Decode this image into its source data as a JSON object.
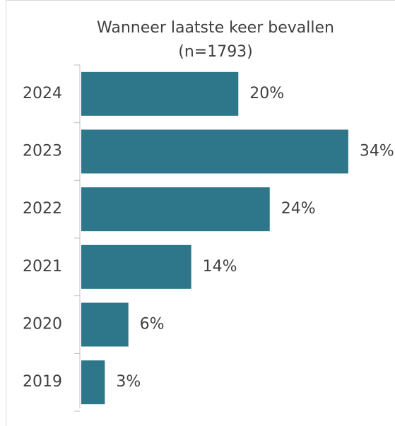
{
  "chart_data": {
    "type": "hbar",
    "title": "Wanneer laatste keer bevallen",
    "subtitle": "(n=1793)",
    "categories": [
      "2024",
      "2023",
      "2022",
      "2021",
      "2020",
      "2019"
    ],
    "values": [
      20,
      34,
      24,
      14,
      6,
      3
    ],
    "value_labels": [
      "20%",
      "34%",
      "24%",
      "14%",
      "6%",
      "3%"
    ],
    "color": "#2e7689",
    "xlim": [
      0,
      35
    ]
  }
}
